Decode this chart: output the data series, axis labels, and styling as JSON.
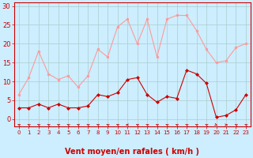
{
  "hours": [
    0,
    1,
    2,
    3,
    4,
    5,
    6,
    7,
    8,
    9,
    10,
    11,
    12,
    13,
    14,
    15,
    16,
    17,
    18,
    19,
    20,
    21,
    22,
    23
  ],
  "rafales": [
    6.5,
    11,
    18,
    12,
    10.5,
    11.5,
    8.5,
    11.5,
    18.5,
    16.5,
    24.5,
    26.5,
    20,
    26.5,
    16.5,
    26.5,
    27.5,
    27.5,
    23.5,
    18.5,
    15,
    15.5,
    19,
    20
  ],
  "moyen": [
    3,
    3,
    4,
    3,
    4,
    3,
    3,
    3.5,
    6.5,
    6,
    7,
    10.5,
    11,
    6.5,
    4.5,
    6,
    5.5,
    13,
    12,
    9.5,
    0.5,
    1,
    2.5,
    6.5
  ],
  "wind_angles": [
    225,
    225,
    225,
    225,
    225,
    225,
    225,
    225,
    225,
    225,
    225,
    270,
    225,
    225,
    225,
    225,
    225,
    225,
    225,
    225,
    45,
    90,
    225,
    225
  ],
  "bg_color": "#cceeff",
  "grid_color": "#aacccc",
  "line_color_rafales": "#ff9999",
  "line_color_moyen": "#cc0000",
  "marker_size": 2,
  "xlabel": "Vent moyen/en rafales ( km/h )",
  "ylabel_ticks": [
    0,
    5,
    10,
    15,
    20,
    25,
    30
  ],
  "ylim": [
    -2,
    31
  ],
  "xlim": [
    -0.5,
    23.5
  ],
  "label_color": "#cc0000",
  "tick_color": "#cc0000",
  "xlabel_fontsize": 7,
  "ytick_fontsize": 6,
  "xtick_fontsize": 5
}
